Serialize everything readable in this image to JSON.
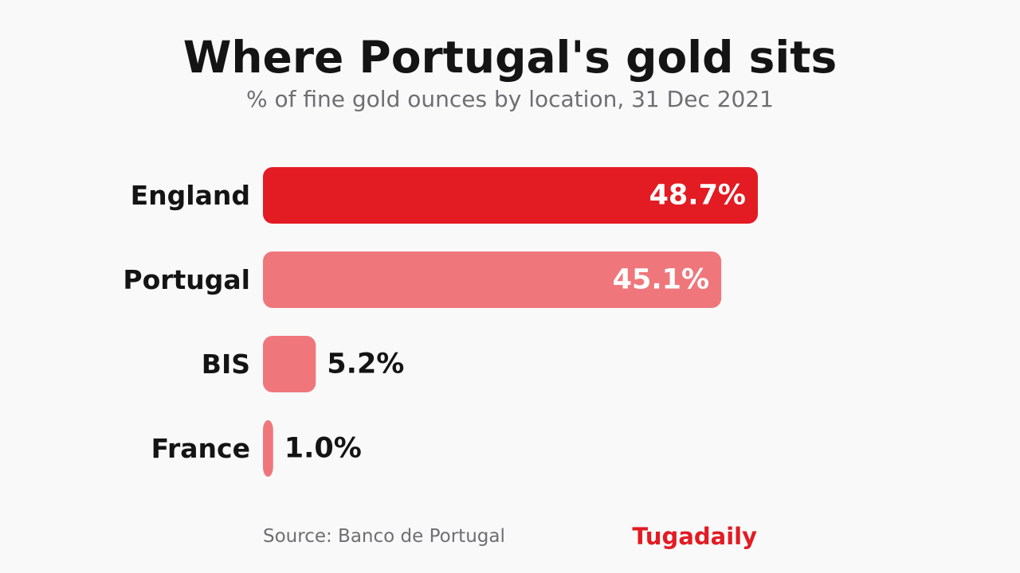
{
  "header": {
    "title": "Where Portugal's gold sits",
    "subtitle": "% of fine gold ounces by location, 31 Dec 2021"
  },
  "footer": {
    "source": "Source: Banco de Portugal",
    "brand": "Tugadaily"
  },
  "colors": {
    "highlight": "#e31b23",
    "bar": "#ef777c",
    "label_dark": "#141414",
    "label_light": "#ffffff"
  },
  "chart_data": {
    "type": "bar",
    "orientation": "horizontal",
    "title": "Where Portugal's gold sits",
    "subtitle": "% of fine gold ounces by location, 31 Dec 2021",
    "categories": [
      "England",
      "Portugal",
      "BIS",
      "France"
    ],
    "values": [
      48.7,
      45.1,
      5.2,
      1.0
    ],
    "value_labels": [
      "48.7%",
      "45.1%",
      "5.2%",
      "1.0%"
    ],
    "unit": "%",
    "highlight_index": 0,
    "xlim": [
      0,
      48.7
    ],
    "grid": false,
    "legend": "none"
  }
}
